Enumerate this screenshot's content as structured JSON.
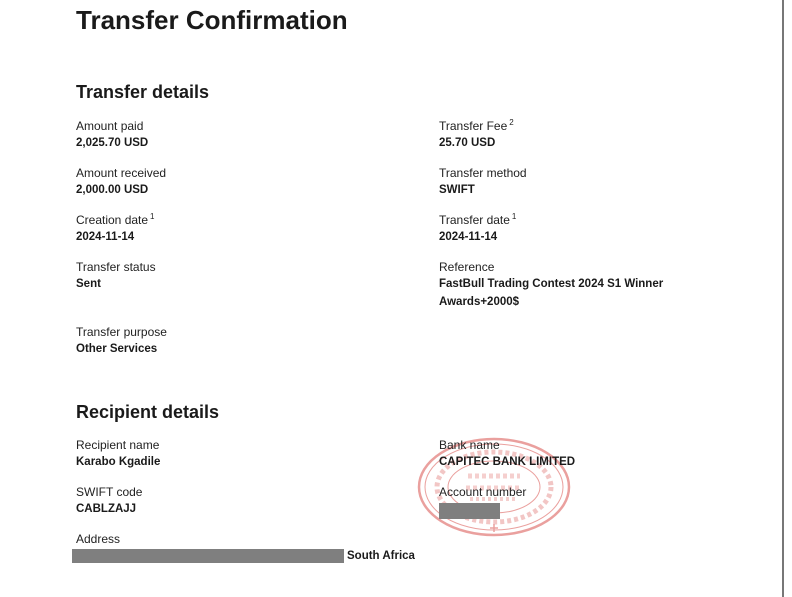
{
  "title": "Transfer Confirmation",
  "transfer_details": {
    "heading": "Transfer details",
    "amount_paid": {
      "label": "Amount paid",
      "value": "2,025.70 USD"
    },
    "transfer_fee": {
      "label": "Transfer Fee",
      "note": "2",
      "value": "25.70 USD"
    },
    "amount_received": {
      "label": "Amount received",
      "value": "2,000.00 USD"
    },
    "transfer_method": {
      "label": "Transfer method",
      "value": "SWIFT"
    },
    "creation_date": {
      "label": "Creation date",
      "note": "1",
      "value": "2024-11-14"
    },
    "transfer_date": {
      "label": "Transfer date",
      "note": "1",
      "value": "2024-11-14"
    },
    "transfer_status": {
      "label": "Transfer status",
      "value": "Sent"
    },
    "reference": {
      "label": "Reference",
      "value_line1": "FastBull Trading Contest 2024 S1 Winner",
      "value_line2": "Awards+2000$"
    },
    "transfer_purpose": {
      "label": "Transfer purpose",
      "value": "Other Services"
    }
  },
  "recipient_details": {
    "heading": "Recipient details",
    "recipient_name": {
      "label": "Recipient name",
      "value": "Karabo Kgadile"
    },
    "bank_name": {
      "label": "Bank name",
      "value": "CAPITEC BANK LIMITED"
    },
    "swift_code": {
      "label": "SWIFT code",
      "value": "CABLZAJJ"
    },
    "account_number": {
      "label": "Account number",
      "value": ""
    },
    "address": {
      "label": "Address",
      "value": "South Africa"
    }
  },
  "seal": {
    "outer_text": "AIRWALLEX (HONG KONG) LIMITED",
    "inner_text": "SEAL FOR BUSINESS OPERATION",
    "color": "#d9534f"
  }
}
